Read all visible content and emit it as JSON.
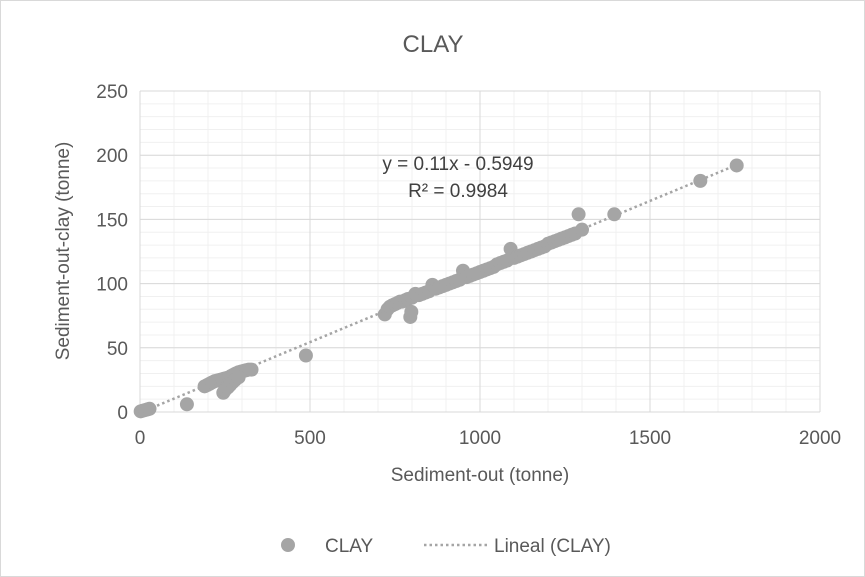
{
  "chart_data": {
    "type": "scatter",
    "title": "CLAY",
    "xlabel": "Sediment-out (tonne)",
    "ylabel": "Sediment-out-clay (tonne)",
    "xlim": [
      0,
      2000
    ],
    "ylim": [
      0,
      250
    ],
    "x_ticks": [
      0,
      500,
      1000,
      1500,
      2000
    ],
    "y_ticks": [
      0,
      50,
      100,
      150,
      200,
      250
    ],
    "grid": true,
    "legend_position": "bottom",
    "series": [
      {
        "name": "CLAY",
        "color": "#a5a5a5",
        "marker": "circle",
        "points": [
          [
            2,
            0.5
          ],
          [
            8,
            1
          ],
          [
            15,
            1.5
          ],
          [
            22,
            2
          ],
          [
            28,
            2.5
          ],
          [
            138,
            6
          ],
          [
            190,
            20
          ],
          [
            198,
            21
          ],
          [
            205,
            22
          ],
          [
            212,
            23
          ],
          [
            220,
            24
          ],
          [
            228,
            24.5
          ],
          [
            235,
            25
          ],
          [
            242,
            25.5
          ],
          [
            248,
            26
          ],
          [
            255,
            26.5
          ],
          [
            262,
            27
          ],
          [
            268,
            28
          ],
          [
            275,
            29
          ],
          [
            282,
            30
          ],
          [
            290,
            31
          ],
          [
            298,
            31.5
          ],
          [
            305,
            32
          ],
          [
            312,
            32.5
          ],
          [
            320,
            33
          ],
          [
            328,
            33
          ],
          [
            245,
            15
          ],
          [
            250,
            17
          ],
          [
            258,
            19
          ],
          [
            265,
            21
          ],
          [
            272,
            23
          ],
          [
            280,
            25
          ],
          [
            290,
            27
          ],
          [
            488,
            44
          ],
          [
            720,
            76
          ],
          [
            728,
            80
          ],
          [
            735,
            82
          ],
          [
            742,
            83
          ],
          [
            750,
            84
          ],
          [
            758,
            85
          ],
          [
            765,
            86
          ],
          [
            772,
            86
          ],
          [
            780,
            87
          ],
          [
            788,
            88
          ],
          [
            795,
            74
          ],
          [
            798,
            78
          ],
          [
            800,
            89
          ],
          [
            810,
            92
          ],
          [
            820,
            91
          ],
          [
            830,
            92
          ],
          [
            840,
            93
          ],
          [
            850,
            94
          ],
          [
            860,
            99
          ],
          [
            870,
            96
          ],
          [
            880,
            97
          ],
          [
            890,
            98
          ],
          [
            900,
            99
          ],
          [
            910,
            100
          ],
          [
            920,
            101
          ],
          [
            930,
            102
          ],
          [
            940,
            103
          ],
          [
            950,
            110
          ],
          [
            960,
            105
          ],
          [
            970,
            106
          ],
          [
            980,
            107
          ],
          [
            990,
            108
          ],
          [
            1000,
            109
          ],
          [
            1010,
            110
          ],
          [
            1020,
            111
          ],
          [
            1030,
            112
          ],
          [
            1040,
            113
          ],
          [
            1050,
            115
          ],
          [
            1060,
            116
          ],
          [
            1070,
            117
          ],
          [
            1080,
            118
          ],
          [
            1090,
            127
          ],
          [
            1100,
            120
          ],
          [
            1110,
            121
          ],
          [
            1120,
            122
          ],
          [
            1130,
            123
          ],
          [
            1140,
            124
          ],
          [
            1150,
            125
          ],
          [
            1160,
            126
          ],
          [
            1170,
            127
          ],
          [
            1180,
            128
          ],
          [
            1190,
            129
          ],
          [
            1200,
            131
          ],
          [
            1210,
            132
          ],
          [
            1220,
            133
          ],
          [
            1230,
            134
          ],
          [
            1240,
            135
          ],
          [
            1250,
            136
          ],
          [
            1260,
            137
          ],
          [
            1270,
            138
          ],
          [
            1280,
            139
          ],
          [
            1290,
            154
          ],
          [
            1300,
            142
          ],
          [
            1395,
            154
          ],
          [
            1648,
            180
          ],
          [
            1755,
            192
          ]
        ]
      }
    ],
    "trendline": {
      "name": "Lineal (CLAY)",
      "type": "linear",
      "slope": 0.11,
      "intercept": -0.5949,
      "color": "#a5a5a5",
      "style": "dotted",
      "equation_label": "y = 0.11x - 0.5949",
      "r2_label": "R² = 0.9984"
    },
    "legend": {
      "series_label": "CLAY",
      "trend_label": "Lineal (CLAY)"
    }
  }
}
